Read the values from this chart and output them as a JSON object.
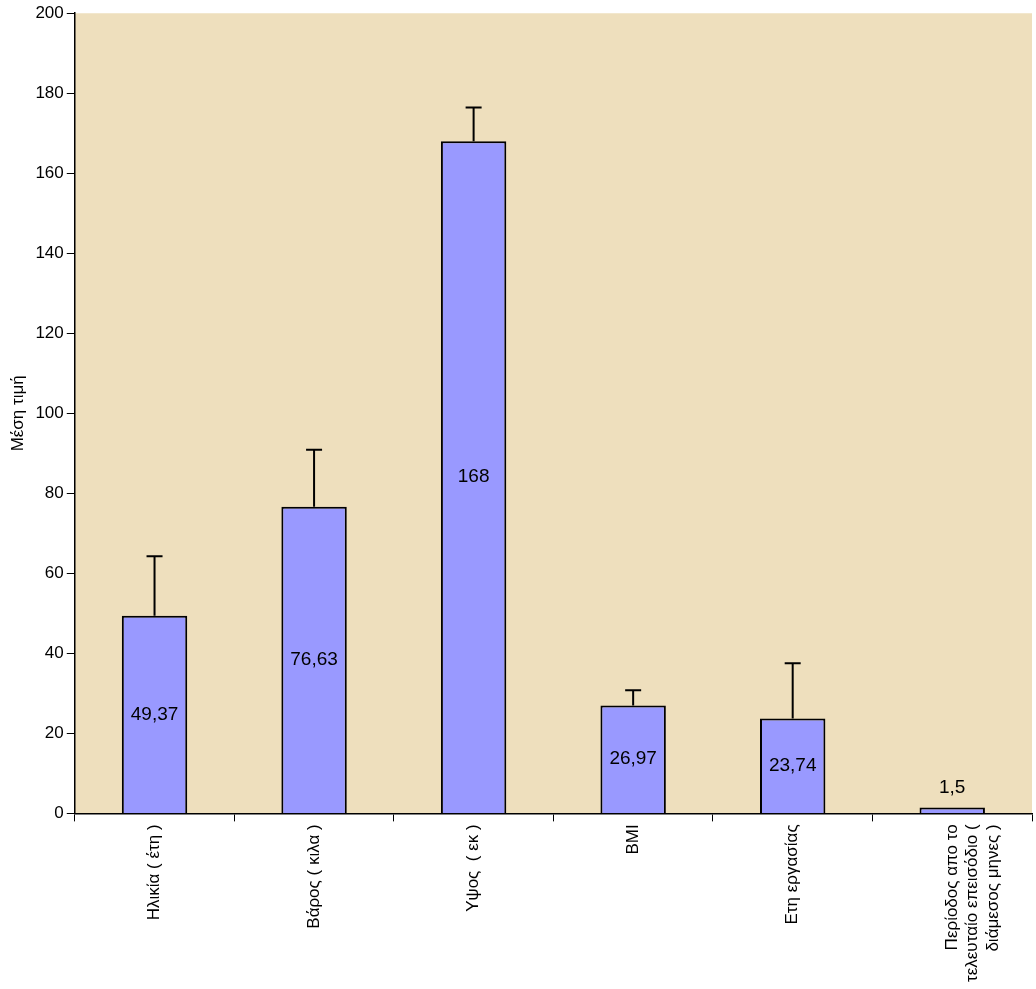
{
  "chart_data": {
    "type": "bar",
    "ylabel": "Μέση τιμή",
    "categories": [
      "Ηλικία ( έτη )",
      "Βάρος ( κιλα )",
      "Υψος  ( εκ )",
      "BMI",
      "Ετη εργασίας",
      "Περίοδος απο το τελευταίο επεισόδιο ( διάμεσος μηνες )"
    ],
    "values": [
      49.37,
      76.63,
      168,
      26.97,
      23.74,
      1.5
    ],
    "value_labels": [
      "49,37",
      "76,63",
      "168",
      "26,97",
      "23,74",
      "1,5"
    ],
    "errors": [
      [
        49.37,
        64.3
      ],
      [
        76.63,
        90.9
      ],
      [
        168,
        176.4
      ],
      [
        26.97,
        30.8
      ],
      [
        23.74,
        37.5
      ],
      null
    ],
    "color": "#9999ff",
    "ylim": [
      0,
      200
    ],
    "yticks": [
      0,
      20,
      40,
      60,
      80,
      100,
      120,
      140,
      160,
      180,
      200
    ]
  }
}
